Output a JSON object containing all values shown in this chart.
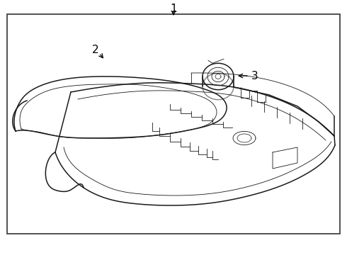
{
  "bg_color": "#ffffff",
  "line_color": "#1a1a1a",
  "border_color": "#333333",
  "fig_width": 4.9,
  "fig_height": 3.6,
  "dpi": 100
}
